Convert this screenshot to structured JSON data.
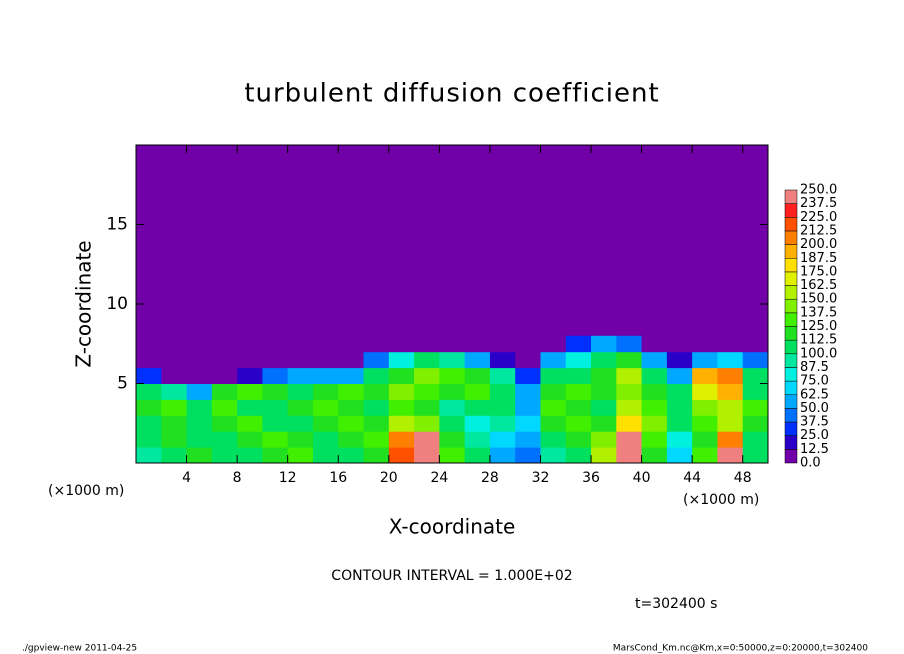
{
  "chart_data": {
    "type": "heatmap",
    "title": "turbulent diffusion coefficient",
    "xlabel": "X-coordinate",
    "ylabel": "Z-coordinate",
    "xunit_left": "(×1000 m)",
    "xunit_right": "(×1000 m)",
    "contour_note": "CONTOUR INTERVAL = 1.000E+02",
    "time_note": "t=302400 s",
    "footer_left": "./gpview-new  2011-04-25",
    "footer_right": "MarsCond_Km.nc@Km,x=0:50000,z=0:20000,t=302400",
    "xlim": [
      0,
      50
    ],
    "ylim": [
      0,
      20
    ],
    "xticks": [
      4,
      8,
      12,
      16,
      20,
      24,
      28,
      32,
      36,
      40,
      44,
      48
    ],
    "yticks": [
      5,
      10,
      15
    ],
    "x": [
      1,
      3,
      5,
      7,
      9,
      11,
      13,
      15,
      17,
      19,
      21,
      23,
      25,
      27,
      29,
      31,
      33,
      35,
      37,
      39,
      41,
      43,
      45,
      47,
      49
    ],
    "y": [
      0.5,
      1.5,
      2.5,
      3.5,
      4.5,
      5.5,
      6.5,
      7.5
    ],
    "z": [
      [
        90,
        110,
        120,
        110,
        100,
        120,
        130,
        110,
        100,
        120,
        220,
        250,
        130,
        110,
        60,
        40,
        90,
        110,
        150,
        250,
        120,
        70,
        130,
        240,
        100
      ],
      [
        100,
        120,
        110,
        100,
        120,
        130,
        120,
        110,
        120,
        130,
        200,
        250,
        120,
        90,
        70,
        60,
        100,
        120,
        140,
        240,
        130,
        80,
        120,
        200,
        110
      ],
      [
        110,
        120,
        100,
        120,
        130,
        110,
        100,
        120,
        130,
        120,
        150,
        140,
        100,
        80,
        90,
        70,
        120,
        130,
        120,
        180,
        140,
        100,
        130,
        160,
        120
      ],
      [
        120,
        130,
        110,
        130,
        100,
        110,
        120,
        130,
        120,
        110,
        130,
        120,
        90,
        110,
        100,
        60,
        130,
        120,
        110,
        150,
        130,
        110,
        140,
        150,
        130
      ],
      [
        110,
        90,
        60,
        120,
        130,
        120,
        110,
        120,
        130,
        120,
        140,
        130,
        120,
        130,
        110,
        50,
        120,
        130,
        120,
        140,
        120,
        100,
        170,
        190,
        110
      ],
      [
        30,
        10,
        0,
        0,
        20,
        40,
        50,
        60,
        60,
        110,
        120,
        140,
        130,
        120,
        90,
        30,
        100,
        110,
        120,
        150,
        110,
        60,
        190,
        200,
        100
      ],
      [
        0,
        0,
        0,
        0,
        0,
        0,
        0,
        0,
        0,
        40,
        80,
        100,
        90,
        60,
        20,
        0,
        60,
        80,
        100,
        120,
        60,
        20,
        60,
        70,
        40
      ],
      [
        0,
        0,
        0,
        0,
        0,
        0,
        0,
        0,
        0,
        0,
        0,
        0,
        0,
        0,
        0,
        0,
        0,
        30,
        50,
        40,
        0,
        0,
        0,
        0,
        0
      ]
    ],
    "colorbar": {
      "levels": [
        {
          "value": 0,
          "label": "0.0"
        },
        {
          "value": 12.5,
          "label": "12.5"
        },
        {
          "value": 25,
          "label": "25.0"
        },
        {
          "value": 37.5,
          "label": "37.5"
        },
        {
          "value": 50,
          "label": "50.0"
        },
        {
          "value": 62.5,
          "label": "62.5"
        },
        {
          "value": 75,
          "label": "75.0"
        },
        {
          "value": 87.5,
          "label": "87.5"
        },
        {
          "value": 100,
          "label": "100.0"
        },
        {
          "value": 112.5,
          "label": "112.5"
        },
        {
          "value": 125,
          "label": "125.0"
        },
        {
          "value": 137.5,
          "label": "137.5"
        },
        {
          "value": 150,
          "label": "150.0"
        },
        {
          "value": 162.5,
          "label": "162.5"
        },
        {
          "value": 175,
          "label": "175.0"
        },
        {
          "value": 187.5,
          "label": "187.5"
        },
        {
          "value": 200,
          "label": "200.0"
        },
        {
          "value": 212.5,
          "label": "212.5"
        },
        {
          "value": 225,
          "label": "225.0"
        },
        {
          "value": 237.5,
          "label": "237.5"
        },
        {
          "value": 250,
          "label": "250.0"
        }
      ],
      "colors": [
        "#7100a8",
        "#2a00c8",
        "#0030ff",
        "#0070ff",
        "#00a8ff",
        "#00d8ff",
        "#00f0e0",
        "#00e8a0",
        "#00e060",
        "#20e020",
        "#40f000",
        "#80f000",
        "#b0f000",
        "#e0f000",
        "#ffe000",
        "#ffb000",
        "#ff8000",
        "#ff5000",
        "#ff2020",
        "#f08080"
      ]
    }
  }
}
